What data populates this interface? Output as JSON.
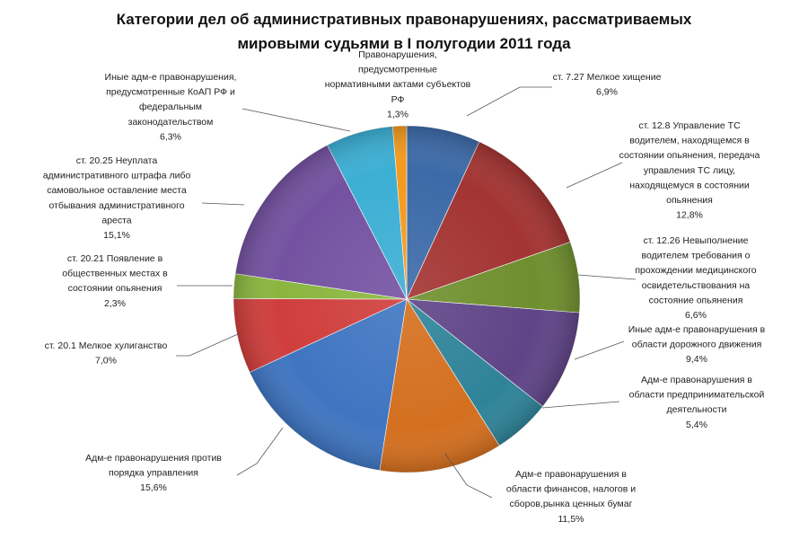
{
  "chart_data": {
    "type": "pie",
    "title": [
      "Категории дел об административных правонарушениях, рассматриваемых",
      "мировыми судьями в I полугодии 2011 года"
    ],
    "start_angle_deg": 0,
    "direction": "clockwise",
    "slices": [
      {
        "label": [
          "ст. 7.27 Мелкое хищение"
        ],
        "value": 6.9,
        "value_label": "6,9%",
        "color": "#3c6aa8"
      },
      {
        "label": [
          "ст. 12.8 Управление ТС",
          "водителем, находящемся в",
          "состоянии опьянения, передача",
          "управления ТС лицу,",
          "находящемуся в состоянии",
          "опьянения"
        ],
        "value": 12.8,
        "value_label": "12,8%",
        "color": "#a33432"
      },
      {
        "label": [
          "ст. 12.26 Невыполнение",
          "водителем требования о",
          "прохождении медицинского",
          "освидетельствования на",
          "состояние опьянения"
        ],
        "value": 6.6,
        "value_label": "6,6%",
        "color": "#6f8f2e"
      },
      {
        "label": [
          "Иные адм-е правонарушения в",
          "области дорожного движения"
        ],
        "value": 9.4,
        "value_label": "9,4%",
        "color": "#5f4487"
      },
      {
        "label": [
          "Адм-е правонарушения в",
          "области предпринимательской",
          "деятельности"
        ],
        "value": 5.4,
        "value_label": "5,4%",
        "color": "#2f8399"
      },
      {
        "label": [
          "Адм-е правонарушения в",
          "области финансов, налогов и",
          "сборов,рынка ценных бумаг"
        ],
        "value": 11.5,
        "value_label": "11,5%",
        "color": "#d46f1f"
      },
      {
        "label": [
          "Адм-е правонарушения против",
          "порядка управления"
        ],
        "value": 15.6,
        "value_label": "15,6%",
        "color": "#3f75c1"
      },
      {
        "label": [
          "ст. 20.1 Мелкое хулиганство"
        ],
        "value": 7.0,
        "value_label": "7,0%",
        "color": "#cf3e3c"
      },
      {
        "label": [
          "ст. 20.21 Появление в",
          "общественных местах в",
          "состоянии опьянения"
        ],
        "value": 2.3,
        "value_label": "2,3%",
        "color": "#8ab63f"
      },
      {
        "label": [
          "ст. 20.25 Неуплата",
          "административного штрафа либо",
          "самовольное оставление места",
          "отбывания административного",
          "ареста"
        ],
        "value": 15.1,
        "value_label": "15,1%",
        "color": "#7452a1"
      },
      {
        "label": [
          "Иные адм-е правонарушения,",
          "предусмотренные КоАП РФ и",
          "федеральным",
          "законодательством"
        ],
        "value": 6.3,
        "value_label": "6,3%",
        "color": "#3cafd4"
      },
      {
        "label": [
          "Правонарушения,",
          "предусмотренные",
          "нормативными актами субъектов",
          "РФ"
        ],
        "value": 1.3,
        "value_label": "1,3%",
        "color": "#f39a1e"
      }
    ]
  }
}
